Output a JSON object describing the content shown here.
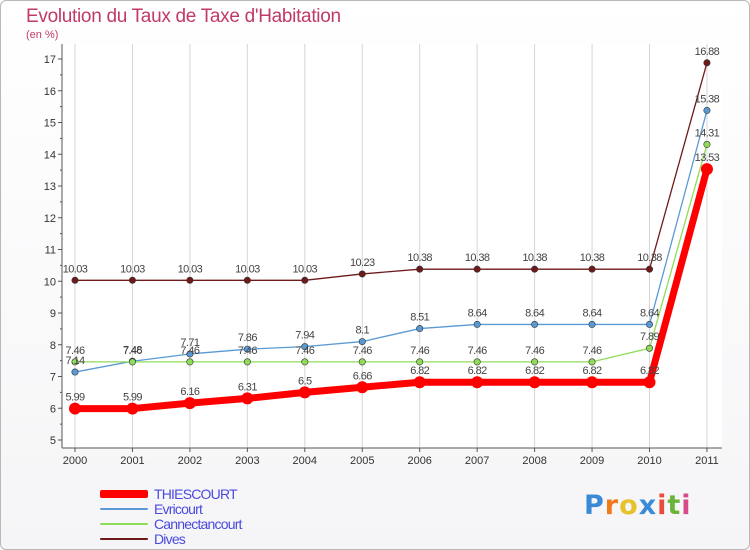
{
  "colors": {
    "title": "#c0396a",
    "axis_text": "#333333",
    "grid": "#d6d6d6",
    "legend_text": "#4a4adf"
  },
  "logo": {
    "letters": [
      "P",
      "r",
      "o",
      "x",
      "i",
      "t",
      "i"
    ],
    "colors": [
      "#3a8ad8",
      "#f07a1a",
      "#e8c22a",
      "#3a8ad8",
      "#e94c3b",
      "#6ab43a",
      "#d64a8a"
    ]
  },
  "chart_data": {
    "type": "line",
    "title": "Evolution du Taux de Taxe d'Habitation",
    "subtitle": "(en %)",
    "xlabel": "",
    "ylabel": "",
    "x": [
      "2000",
      "2001",
      "2002",
      "2003",
      "2004",
      "2005",
      "2006",
      "2007",
      "2008",
      "2009",
      "2010",
      "2011"
    ],
    "ylim": [
      5,
      17
    ],
    "yticks": [
      5,
      6,
      7,
      8,
      9,
      10,
      11,
      12,
      13,
      14,
      15,
      16,
      17
    ],
    "grid": "vertical",
    "legend_position": "bottom-left",
    "series": [
      {
        "name": "Dives",
        "color": "#6e1a1a",
        "width": 1.3,
        "values": [
          10.03,
          10.03,
          10.03,
          10.03,
          10.03,
          10.23,
          10.38,
          10.38,
          10.38,
          10.38,
          10.38,
          16.88
        ],
        "labels": [
          "10.03",
          "10.03",
          "10.03",
          "10.03",
          "10.03",
          "10.23",
          "10.38",
          "10.38",
          "10.38",
          "10.38",
          "10.38",
          "16.88"
        ]
      },
      {
        "name": "Evricourt",
        "color": "#5a9ad4",
        "width": 1.3,
        "values": [
          7.14,
          7.48,
          7.71,
          7.86,
          7.94,
          8.1,
          8.51,
          8.64,
          8.64,
          8.64,
          8.64,
          15.38
        ],
        "labels": [
          "7.14",
          "7.48",
          "7.71",
          "7.86",
          "7.94",
          "8.1",
          "8.51",
          "8.64",
          "8.64",
          "8.64",
          "8.64",
          "15.38"
        ]
      },
      {
        "name": "Cannectancourt",
        "color": "#8fdc58",
        "width": 1.3,
        "values": [
          7.46,
          7.46,
          7.46,
          7.46,
          7.46,
          7.46,
          7.46,
          7.46,
          7.46,
          7.46,
          7.89,
          14.31
        ],
        "labels": [
          "7.46",
          "7.46",
          "7.46",
          "7.46",
          "7.46",
          "7.46",
          "7.46",
          "7.46",
          "7.46",
          "7.46",
          "7.89",
          "14.31"
        ]
      },
      {
        "name": "THIESCOURT",
        "color": "#ff0000",
        "width": 7,
        "values": [
          5.99,
          5.99,
          6.16,
          6.31,
          6.5,
          6.66,
          6.82,
          6.82,
          6.82,
          6.82,
          6.82,
          13.53
        ],
        "labels": [
          "5.99",
          "5.99",
          "6.16",
          "6.31",
          "6.5",
          "6.66",
          "6.82",
          "6.82",
          "6.82",
          "6.82",
          "6.82",
          "13.53"
        ]
      }
    ],
    "legend": [
      "THIESCOURT",
      "Evricourt",
      "Cannectancourt",
      "Dives"
    ]
  }
}
